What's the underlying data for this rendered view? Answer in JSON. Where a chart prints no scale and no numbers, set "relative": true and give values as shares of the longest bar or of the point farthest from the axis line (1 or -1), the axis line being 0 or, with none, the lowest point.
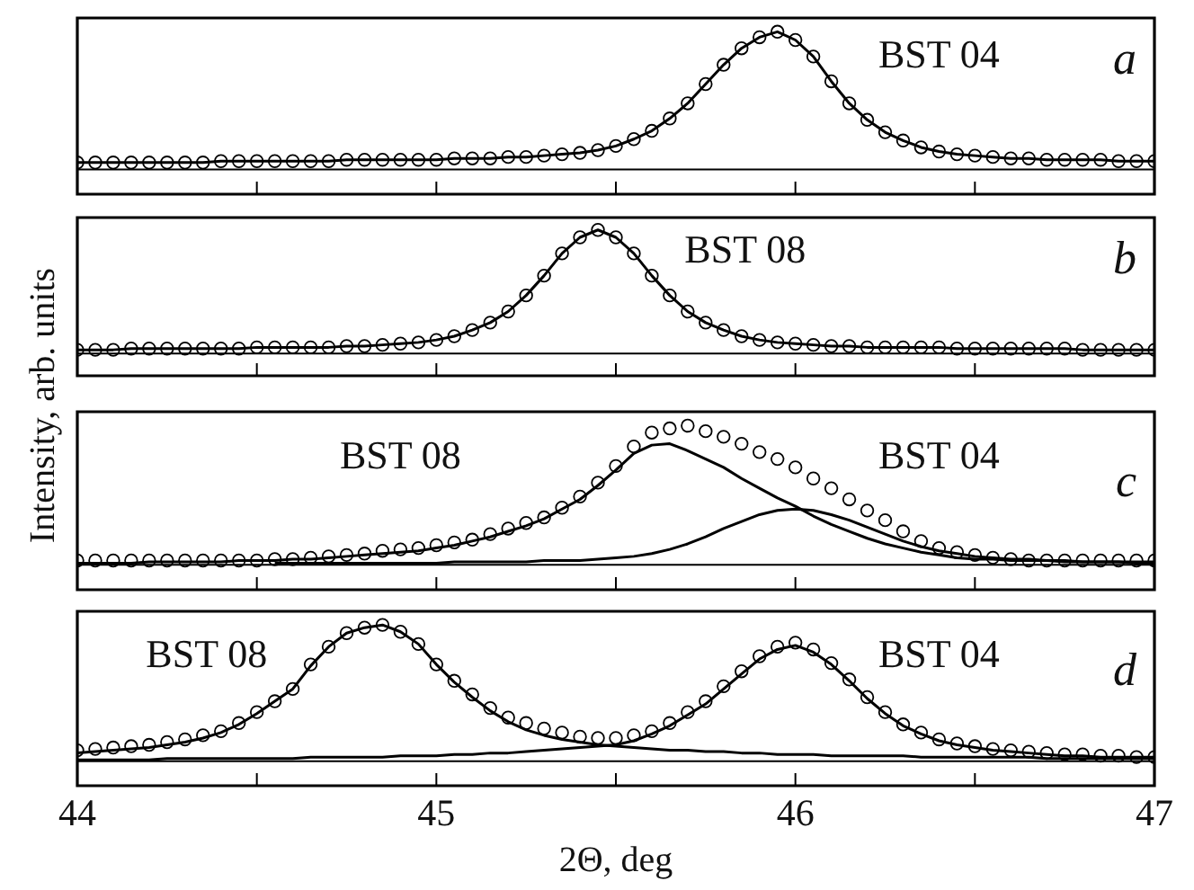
{
  "chart_data": [
    {
      "type": "line",
      "title": "a",
      "relative": true,
      "tick_labels": false,
      "ylabel": "Intensity, arb. units",
      "xlim": [
        44,
        47
      ],
      "xticks": [
        44,
        {
          "value": 44.5,
          "label": null
        },
        45,
        {
          "value": 45.5,
          "label": null
        },
        46,
        {
          "value": 46.5,
          "label": null
        },
        47
      ],
      "x": [
        44,
        44.05,
        44.1,
        44.15,
        44.2,
        44.25,
        44.3,
        44.35,
        44.4,
        44.45,
        44.5,
        44.55,
        44.6,
        44.65,
        44.7,
        44.75,
        44.8,
        44.85,
        44.9,
        44.95,
        45,
        45.05,
        45.1,
        45.15,
        45.2,
        45.25,
        45.3,
        45.35,
        45.4,
        45.45,
        45.5,
        45.55,
        45.6,
        45.65,
        45.7,
        45.75,
        45.8,
        45.85,
        45.9,
        45.95,
        46,
        46.05,
        46.1,
        46.15,
        46.2,
        46.25,
        46.3,
        46.35,
        46.4,
        46.45,
        46.5,
        46.55,
        46.6,
        46.65,
        46.7,
        46.75,
        46.8,
        46.85,
        46.9,
        46.95,
        47
      ],
      "annotations": [
        "BST 04"
      ],
      "series": [
        {
          "color": "#000000",
          "values": [
            0.05,
            0.05,
            0.05,
            0.05,
            0.05,
            0.05,
            0.05,
            0.05,
            0.06,
            0.06,
            0.06,
            0.06,
            0.06,
            0.06,
            0.06,
            0.07,
            0.07,
            0.07,
            0.07,
            0.07,
            0.07,
            0.08,
            0.08,
            0.08,
            0.09,
            0.09,
            0.1,
            0.11,
            0.12,
            0.14,
            0.17,
            0.22,
            0.28,
            0.37,
            0.48,
            0.62,
            0.76,
            0.88,
            0.96,
            1,
            0.94,
            0.82,
            0.64,
            0.48,
            0.36,
            0.27,
            0.21,
            0.16,
            0.13,
            0.11,
            0.1,
            0.09,
            0.08,
            0.08,
            0.07,
            0.07,
            0.07,
            0.07,
            0.06,
            0.06,
            0.06
          ]
        },
        {
          "type": "scatter",
          "marker": "circle",
          "color": "#000000",
          "values": [
            0.05,
            0.05,
            0.05,
            0.05,
            0.05,
            0.05,
            0.05,
            0.05,
            0.06,
            0.06,
            0.06,
            0.06,
            0.06,
            0.06,
            0.06,
            0.07,
            0.07,
            0.07,
            0.07,
            0.07,
            0.07,
            0.08,
            0.08,
            0.08,
            0.09,
            0.09,
            0.1,
            0.11,
            0.12,
            0.14,
            0.17,
            0.22,
            0.28,
            0.37,
            0.48,
            0.62,
            0.76,
            0.88,
            0.96,
            1,
            0.94,
            0.82,
            0.64,
            0.48,
            0.36,
            0.27,
            0.21,
            0.16,
            0.13,
            0.11,
            0.1,
            0.09,
            0.08,
            0.08,
            0.07,
            0.07,
            0.07,
            0.07,
            0.06,
            0.06,
            0.06
          ]
        }
      ]
    },
    {
      "type": "line",
      "title": "b",
      "relative": true,
      "tick_labels": false,
      "xlim": [
        44,
        47
      ],
      "xticks": [
        44,
        {
          "value": 44.5,
          "label": null
        },
        45,
        {
          "value": 45.5,
          "label": null
        },
        46,
        {
          "value": 46.5,
          "label": null
        },
        47
      ],
      "x": [
        44,
        44.05,
        44.1,
        44.15,
        44.2,
        44.25,
        44.3,
        44.35,
        44.4,
        44.45,
        44.5,
        44.55,
        44.6,
        44.65,
        44.7,
        44.75,
        44.8,
        44.85,
        44.9,
        44.95,
        45,
        45.05,
        45.1,
        45.15,
        45.2,
        45.25,
        45.3,
        45.35,
        45.4,
        45.45,
        45.5,
        45.55,
        45.6,
        45.65,
        45.7,
        45.75,
        45.8,
        45.85,
        45.9,
        45.95,
        46,
        46.05,
        46.1,
        46.15,
        46.2,
        46.25,
        46.3,
        46.35,
        46.4,
        46.45,
        46.5,
        46.55,
        46.6,
        46.65,
        46.7,
        46.75,
        46.8,
        46.85,
        46.9,
        46.95,
        47
      ],
      "annotations": [
        "BST 08"
      ],
      "series": [
        {
          "color": "#000000",
          "values": [
            0.03,
            0.03,
            0.03,
            0.04,
            0.04,
            0.04,
            0.04,
            0.04,
            0.04,
            0.04,
            0.05,
            0.05,
            0.05,
            0.05,
            0.05,
            0.06,
            0.06,
            0.07,
            0.08,
            0.09,
            0.11,
            0.14,
            0.19,
            0.25,
            0.34,
            0.47,
            0.63,
            0.81,
            0.94,
            1,
            0.94,
            0.81,
            0.63,
            0.47,
            0.34,
            0.25,
            0.19,
            0.14,
            0.11,
            0.09,
            0.08,
            0.07,
            0.06,
            0.06,
            0.05,
            0.05,
            0.05,
            0.05,
            0.05,
            0.04,
            0.04,
            0.04,
            0.04,
            0.04,
            0.04,
            0.04,
            0.03,
            0.03,
            0.03,
            0.03,
            0.03
          ]
        },
        {
          "type": "scatter",
          "marker": "circle",
          "color": "#000000",
          "values": [
            0.03,
            0.03,
            0.03,
            0.04,
            0.04,
            0.04,
            0.04,
            0.04,
            0.04,
            0.04,
            0.05,
            0.05,
            0.05,
            0.05,
            0.05,
            0.06,
            0.06,
            0.07,
            0.08,
            0.09,
            0.11,
            0.14,
            0.19,
            0.25,
            0.34,
            0.47,
            0.63,
            0.81,
            0.94,
            1,
            0.94,
            0.81,
            0.63,
            0.47,
            0.34,
            0.25,
            0.19,
            0.14,
            0.11,
            0.09,
            0.08,
            0.07,
            0.06,
            0.06,
            0.05,
            0.05,
            0.05,
            0.05,
            0.05,
            0.04,
            0.04,
            0.04,
            0.04,
            0.04,
            0.04,
            0.04,
            0.03,
            0.03,
            0.03,
            0.03,
            0.03
          ]
        }
      ]
    },
    {
      "type": "line",
      "title": "c",
      "relative": true,
      "tick_labels": false,
      "xlim": [
        44,
        47
      ],
      "xticks": [
        44,
        {
          "value": 44.5,
          "label": null
        },
        45,
        {
          "value": 45.5,
          "label": null
        },
        46,
        {
          "value": 46.5,
          "label": null
        },
        47
      ],
      "x": [
        44,
        44.05,
        44.1,
        44.15,
        44.2,
        44.25,
        44.3,
        44.35,
        44.4,
        44.45,
        44.5,
        44.55,
        44.6,
        44.65,
        44.7,
        44.75,
        44.8,
        44.85,
        44.9,
        44.95,
        45,
        45.05,
        45.1,
        45.15,
        45.2,
        45.25,
        45.3,
        45.35,
        45.4,
        45.45,
        45.5,
        45.55,
        45.6,
        45.65,
        45.7,
        45.75,
        45.8,
        45.85,
        45.9,
        45.95,
        46,
        46.05,
        46.1,
        46.15,
        46.2,
        46.25,
        46.3,
        46.35,
        46.4,
        46.45,
        46.5,
        46.55,
        46.6,
        46.65,
        46.7,
        46.75,
        46.8,
        46.85,
        46.9,
        46.95,
        47
      ],
      "annotations": [
        "BST 08",
        "BST 04"
      ],
      "series": [
        {
          "color": "#000000",
          "values": [
            0.01,
            0.01,
            0.01,
            0.01,
            0.02,
            0.02,
            0.02,
            0.02,
            0.02,
            0.03,
            0.03,
            0.03,
            0.04,
            0.04,
            0.05,
            0.06,
            0.07,
            0.08,
            0.09,
            0.1,
            0.12,
            0.14,
            0.17,
            0.2,
            0.24,
            0.28,
            0.33,
            0.4,
            0.47,
            0.57,
            0.68,
            0.8,
            0.86,
            0.87,
            0.82,
            0.76,
            0.7,
            0.62,
            0.55,
            0.48,
            0.42,
            0.35,
            0.29,
            0.24,
            0.19,
            0.15,
            0.12,
            0.09,
            0.07,
            0.05,
            0.04,
            0.04,
            0.03,
            0.03,
            0.03,
            0.02,
            0.02,
            0.02,
            0.02,
            0.01,
            0.01
          ]
        },
        {
          "color": "#000000",
          "x": [
            44.55,
            44.6,
            44.65,
            44.7,
            44.75,
            44.8,
            44.85,
            44.9,
            44.95,
            45,
            45.05,
            45.1,
            45.15,
            45.2,
            45.25,
            45.3,
            45.35,
            45.4,
            45.45,
            45.5,
            45.55,
            45.6,
            45.65,
            45.7,
            45.75,
            45.8,
            45.85,
            45.9,
            45.95,
            46,
            46.05,
            46.1,
            46.15,
            46.2,
            46.25,
            46.3,
            46.35,
            46.4,
            46.45,
            46.5,
            46.55,
            46.6,
            46.65,
            46.7,
            46.75,
            46.8,
            46.85,
            46.9,
            46.95,
            47
          ],
          "values": [
            0.01,
            0.01,
            0.01,
            0.01,
            0.01,
            0.01,
            0.01,
            0.01,
            0.01,
            0.01,
            0.02,
            0.02,
            0.02,
            0.02,
            0.02,
            0.03,
            0.03,
            0.03,
            0.04,
            0.05,
            0.06,
            0.08,
            0.11,
            0.15,
            0.2,
            0.26,
            0.31,
            0.36,
            0.39,
            0.4,
            0.39,
            0.36,
            0.32,
            0.27,
            0.22,
            0.17,
            0.13,
            0.1,
            0.08,
            0.06,
            0.05,
            0.04,
            0.04,
            0.03,
            0.03,
            0.02,
            0.02,
            0.02,
            0.02,
            0.02
          ]
        },
        {
          "type": "scatter",
          "marker": "circle",
          "color": "#000000",
          "values": [
            0.03,
            0.03,
            0.03,
            0.03,
            0.03,
            0.03,
            0.03,
            0.03,
            0.03,
            0.03,
            0.03,
            0.04,
            0.04,
            0.05,
            0.06,
            0.07,
            0.08,
            0.1,
            0.11,
            0.12,
            0.14,
            0.16,
            0.18,
            0.22,
            0.26,
            0.3,
            0.34,
            0.41,
            0.49,
            0.59,
            0.71,
            0.85,
            0.95,
            0.98,
            1,
            0.96,
            0.92,
            0.87,
            0.81,
            0.76,
            0.7,
            0.62,
            0.55,
            0.47,
            0.39,
            0.32,
            0.24,
            0.17,
            0.12,
            0.09,
            0.07,
            0.05,
            0.04,
            0.03,
            0.03,
            0.03,
            0.03,
            0.03,
            0.03,
            0.03,
            0.03
          ]
        }
      ]
    },
    {
      "type": "line",
      "title": "d",
      "relative": true,
      "tick_labels": "x",
      "xlabel": "2Θ, deg",
      "xlim": [
        44,
        47
      ],
      "xticks": [
        44,
        {
          "value": 44.5,
          "label": null
        },
        45,
        {
          "value": 45.5,
          "label": null
        },
        46,
        {
          "value": 46.5,
          "label": null
        },
        47
      ],
      "x": [
        44,
        44.05,
        44.1,
        44.15,
        44.2,
        44.25,
        44.3,
        44.35,
        44.4,
        44.45,
        44.5,
        44.55,
        44.6,
        44.65,
        44.7,
        44.75,
        44.8,
        44.85,
        44.9,
        44.95,
        45,
        45.05,
        45.1,
        45.15,
        45.2,
        45.25,
        45.3,
        45.35,
        45.4,
        45.45,
        45.5,
        45.55,
        45.6,
        45.65,
        45.7,
        45.75,
        45.8,
        45.85,
        45.9,
        45.95,
        46,
        46.05,
        46.1,
        46.15,
        46.2,
        46.25,
        46.3,
        46.35,
        46.4,
        46.45,
        46.5,
        46.55,
        46.6,
        46.65,
        46.7,
        46.75,
        46.8,
        46.85,
        46.9,
        46.95,
        47
      ],
      "annotations": [
        "BST 08",
        "BST 04"
      ],
      "series": [
        {
          "color": "#000000",
          "values": [
            0.06,
            0.07,
            0.08,
            0.09,
            0.1,
            0.12,
            0.14,
            0.17,
            0.21,
            0.27,
            0.35,
            0.44,
            0.53,
            0.7,
            0.84,
            0.94,
            0.98,
            1,
            0.95,
            0.86,
            0.71,
            0.58,
            0.47,
            0.37,
            0.29,
            0.23,
            0.19,
            0.16,
            0.14,
            0.12,
            0.11,
            0.1,
            0.09,
            0.08,
            0.08,
            0.07,
            0.07,
            0.06,
            0.06,
            0.05,
            0.05,
            0.05,
            0.04,
            0.04,
            0.04,
            0.04,
            0.04,
            0.03,
            0.03,
            0.03,
            0.03,
            0.03,
            0.03,
            0.03,
            0.02,
            0.02,
            0.02,
            0.02,
            0.02,
            0.02,
            0.02
          ]
        },
        {
          "color": "#000000",
          "values": [
            0.01,
            0.01,
            0.01,
            0.01,
            0.01,
            0.02,
            0.02,
            0.02,
            0.02,
            0.02,
            0.02,
            0.02,
            0.02,
            0.03,
            0.03,
            0.03,
            0.03,
            0.03,
            0.04,
            0.04,
            0.04,
            0.05,
            0.05,
            0.06,
            0.06,
            0.07,
            0.08,
            0.09,
            0.1,
            0.11,
            0.12,
            0.15,
            0.2,
            0.26,
            0.34,
            0.42,
            0.53,
            0.64,
            0.75,
            0.82,
            0.85,
            0.8,
            0.71,
            0.59,
            0.46,
            0.35,
            0.26,
            0.2,
            0.15,
            0.12,
            0.1,
            0.08,
            0.07,
            0.06,
            0.05,
            0.04,
            0.04,
            0.03,
            0.03,
            0.03,
            0.03
          ]
        },
        {
          "type": "scatter",
          "marker": "circle",
          "color": "#000000",
          "values": [
            0.08,
            0.09,
            0.1,
            0.11,
            0.12,
            0.14,
            0.16,
            0.19,
            0.22,
            0.28,
            0.36,
            0.44,
            0.53,
            0.71,
            0.84,
            0.94,
            0.98,
            1,
            0.95,
            0.86,
            0.71,
            0.59,
            0.49,
            0.39,
            0.32,
            0.28,
            0.24,
            0.21,
            0.18,
            0.17,
            0.17,
            0.19,
            0.22,
            0.28,
            0.36,
            0.44,
            0.55,
            0.66,
            0.77,
            0.84,
            0.87,
            0.82,
            0.72,
            0.6,
            0.47,
            0.36,
            0.27,
            0.21,
            0.16,
            0.13,
            0.11,
            0.09,
            0.08,
            0.07,
            0.06,
            0.05,
            0.05,
            0.04,
            0.04,
            0.03,
            0.03
          ]
        }
      ]
    }
  ]
}
